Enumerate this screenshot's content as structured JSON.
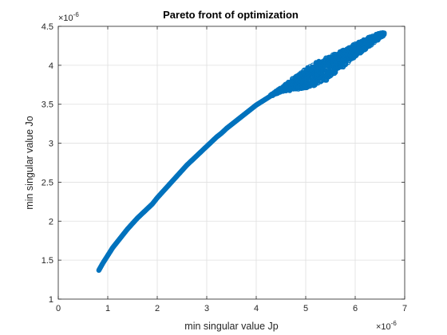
{
  "chart_data": {
    "type": "scatter",
    "title": "Pareto front of optimization",
    "xlabel": "min singular value Jp",
    "ylabel": "min singular value Jo",
    "xlim": [
      0,
      7
    ],
    "ylim": [
      1,
      4.5
    ],
    "x_ticks": [
      0,
      1,
      2,
      3,
      4,
      5,
      6,
      7
    ],
    "y_ticks": [
      1,
      1.5,
      2,
      2.5,
      3,
      3.5,
      4,
      4.5
    ],
    "x_tick_labels": [
      "0",
      "1",
      "2",
      "3",
      "4",
      "5",
      "6",
      "7"
    ],
    "y_tick_labels": [
      "1",
      "1.5",
      "2",
      "2.5",
      "3",
      "3.5",
      "4",
      "4.5"
    ],
    "x_exponent": {
      "base": "×10",
      "power": "-6"
    },
    "y_exponent": {
      "base": "×10",
      "power": "-6"
    },
    "grid": true,
    "marker_color": "#0072BD",
    "marker": "open-circle",
    "series": [
      {
        "x": [
          0.82,
          0.9,
          1.0,
          1.1,
          1.2,
          1.3,
          1.4,
          1.5,
          1.6,
          1.7,
          1.8,
          1.9,
          2.0,
          2.1,
          2.2,
          2.3,
          2.4,
          2.5,
          2.6,
          2.7,
          2.8,
          2.9,
          3.0,
          3.1,
          3.2,
          3.3,
          3.4,
          3.5,
          3.6,
          3.7,
          3.8,
          3.9,
          4.0,
          4.1,
          4.2,
          4.3,
          4.4,
          4.5,
          4.6,
          4.7,
          4.8,
          4.9,
          5.0,
          5.1,
          5.2,
          5.3,
          5.4,
          5.5,
          5.6,
          5.7,
          5.8,
          5.9,
          6.0,
          6.1,
          6.2,
          6.3,
          6.4,
          6.5,
          6.58
        ],
        "y": [
          1.37,
          1.46,
          1.56,
          1.66,
          1.74,
          1.82,
          1.9,
          1.97,
          2.04,
          2.1,
          2.16,
          2.22,
          2.3,
          2.37,
          2.44,
          2.51,
          2.58,
          2.65,
          2.72,
          2.78,
          2.84,
          2.9,
          2.96,
          3.02,
          3.08,
          3.13,
          3.19,
          3.24,
          3.29,
          3.34,
          3.39,
          3.44,
          3.49,
          3.53,
          3.57,
          3.61,
          3.65,
          3.68,
          3.71,
          3.74,
          3.77,
          3.8,
          3.83,
          3.86,
          3.89,
          3.92,
          3.95,
          3.99,
          4.03,
          4.07,
          4.11,
          4.15,
          4.19,
          4.23,
          4.27,
          4.31,
          4.35,
          4.38,
          4.4
        ],
        "spread": [
          0,
          0,
          0,
          0,
          0,
          0,
          0,
          0,
          0,
          0,
          0,
          0,
          0,
          0,
          0,
          0,
          0,
          0,
          0,
          0,
          0,
          0,
          0,
          0,
          0,
          0,
          0,
          0,
          0,
          0,
          0,
          0,
          0,
          0,
          0,
          0,
          0.01,
          0.02,
          0.04,
          0.06,
          0.08,
          0.1,
          0.12,
          0.13,
          0.14,
          0.14,
          0.14,
          0.13,
          0.12,
          0.11,
          0.1,
          0.09,
          0.08,
          0.07,
          0.06,
          0.05,
          0.04,
          0.03,
          0.02
        ]
      }
    ]
  }
}
